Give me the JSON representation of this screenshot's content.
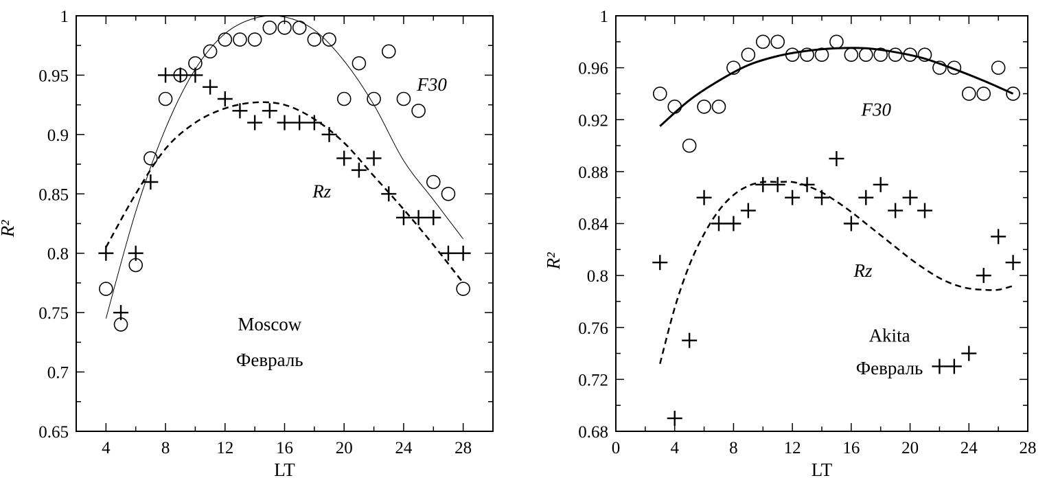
{
  "chart_data": [
    {
      "type": "scatter",
      "panel": "left",
      "xlabel": "LT",
      "ylabel": "R²",
      "xlim": [
        2,
        30
      ],
      "ylim": [
        0.65,
        1.0
      ],
      "xticks": [
        4,
        8,
        12,
        16,
        20,
        24,
        28
      ],
      "yticks": [
        0.65,
        0.7,
        0.75,
        0.8,
        0.85,
        0.9,
        0.95,
        1
      ],
      "ytick_labels": [
        "0.65",
        "0.7",
        "0.75",
        "0.8",
        "0.85",
        "0.9",
        "0.95",
        "1"
      ],
      "grid": false,
      "annotations": [
        {
          "text": "F30",
          "x": 25.9,
          "y": 0.937,
          "italic": true
        },
        {
          "text": "Rz",
          "x": 18.5,
          "y": 0.847,
          "italic": true
        },
        {
          "text": "Moscow",
          "x": 15.0,
          "y": 0.735,
          "italic": false
        },
        {
          "text": "Февраль",
          "x": 15.0,
          "y": 0.705,
          "italic": false
        }
      ],
      "series": [
        {
          "name": "F30",
          "marker": "circle",
          "points": [
            [
              4,
              0.77
            ],
            [
              5,
              0.74
            ],
            [
              6,
              0.79
            ],
            [
              7,
              0.88
            ],
            [
              8,
              0.93
            ],
            [
              9,
              0.95
            ],
            [
              10,
              0.96
            ],
            [
              11,
              0.97
            ],
            [
              12,
              0.98
            ],
            [
              13,
              0.98
            ],
            [
              14,
              0.98
            ],
            [
              15,
              0.99
            ],
            [
              16,
              0.99
            ],
            [
              17,
              0.99
            ],
            [
              18,
              0.98
            ],
            [
              19,
              0.98
            ],
            [
              20,
              0.93
            ],
            [
              21,
              0.96
            ],
            [
              22,
              0.93
            ],
            [
              23,
              0.97
            ],
            [
              24,
              0.93
            ],
            [
              25,
              0.92
            ],
            [
              26,
              0.86
            ],
            [
              27,
              0.85
            ],
            [
              28,
              0.77
            ]
          ],
          "fit": {
            "style": "solid-thin",
            "points": [
              [
                4,
                0.745
              ],
              [
                6,
                0.835
              ],
              [
                8,
                0.905
              ],
              [
                10,
                0.955
              ],
              [
                12,
                0.985
              ],
              [
                14,
                0.998
              ],
              [
                16,
                0.999
              ],
              [
                18,
                0.988
              ],
              [
                20,
                0.962
              ],
              [
                22,
                0.925
              ],
              [
                24,
                0.878
              ],
              [
                26,
                0.845
              ],
              [
                28,
                0.812
              ]
            ]
          }
        },
        {
          "name": "Rz",
          "marker": "plus",
          "points": [
            [
              4,
              0.8
            ],
            [
              5,
              0.75
            ],
            [
              6,
              0.8
            ],
            [
              7,
              0.86
            ],
            [
              8,
              0.95
            ],
            [
              9,
              0.95
            ],
            [
              10,
              0.95
            ],
            [
              11,
              0.94
            ],
            [
              12,
              0.93
            ],
            [
              13,
              0.92
            ],
            [
              14,
              0.91
            ],
            [
              15,
              0.92
            ],
            [
              16,
              0.91
            ],
            [
              17,
              0.91
            ],
            [
              18,
              0.91
            ],
            [
              19,
              0.9
            ],
            [
              20,
              0.88
            ],
            [
              21,
              0.87
            ],
            [
              22,
              0.88
            ],
            [
              23,
              0.85
            ],
            [
              24,
              0.83
            ],
            [
              25,
              0.83
            ],
            [
              26,
              0.83
            ],
            [
              27,
              0.8
            ],
            [
              28,
              0.8
            ]
          ],
          "fit": {
            "style": "dashed",
            "points": [
              [
                4,
                0.805
              ],
              [
                6,
                0.85
              ],
              [
                8,
                0.888
              ],
              [
                10,
                0.91
              ],
              [
                12,
                0.922
              ],
              [
                14,
                0.927
              ],
              [
                16,
                0.925
              ],
              [
                18,
                0.913
              ],
              [
                20,
                0.893
              ],
              [
                22,
                0.865
              ],
              [
                24,
                0.837
              ],
              [
                26,
                0.807
              ],
              [
                28,
                0.775
              ]
            ]
          }
        }
      ]
    },
    {
      "type": "scatter",
      "panel": "right",
      "xlabel": "LT",
      "ylabel": "R²",
      "xlim": [
        0,
        28
      ],
      "ylim": [
        0.68,
        1.0
      ],
      "xticks": [
        0,
        4,
        8,
        12,
        16,
        20,
        24,
        28
      ],
      "yticks": [
        0.68,
        0.72,
        0.76,
        0.8,
        0.84,
        0.88,
        0.92,
        0.96,
        1
      ],
      "ytick_labels": [
        "0.68",
        "0.72",
        "0.76",
        "0.8",
        "0.84",
        "0.88",
        "0.92",
        "0.96",
        "1"
      ],
      "grid": false,
      "annotations": [
        {
          "text": "F30",
          "x": 17.7,
          "y": 0.923,
          "italic": true
        },
        {
          "text": "Rz",
          "x": 16.8,
          "y": 0.799,
          "italic": true
        },
        {
          "text": "Akita",
          "x": 18.6,
          "y": 0.749,
          "italic": false
        },
        {
          "text": "Февраль",
          "x": 18.6,
          "y": 0.724,
          "italic": false
        }
      ],
      "series": [
        {
          "name": "F30",
          "marker": "circle",
          "points": [
            [
              3,
              0.94
            ],
            [
              4,
              0.93
            ],
            [
              5,
              0.9
            ],
            [
              6,
              0.93
            ],
            [
              7,
              0.93
            ],
            [
              8,
              0.96
            ],
            [
              9,
              0.97
            ],
            [
              10,
              0.98
            ],
            [
              11,
              0.98
            ],
            [
              12,
              0.97
            ],
            [
              13,
              0.97
            ],
            [
              14,
              0.97
            ],
            [
              15,
              0.98
            ],
            [
              16,
              0.97
            ],
            [
              17,
              0.97
            ],
            [
              18,
              0.97
            ],
            [
              19,
              0.97
            ],
            [
              20,
              0.97
            ],
            [
              21,
              0.97
            ],
            [
              22,
              0.96
            ],
            [
              23,
              0.96
            ],
            [
              24,
              0.94
            ],
            [
              25,
              0.94
            ],
            [
              26,
              0.96
            ],
            [
              27,
              0.94
            ]
          ],
          "fit": {
            "style": "solid-thick",
            "points": [
              [
                3,
                0.915
              ],
              [
                5,
                0.935
              ],
              [
                7,
                0.95
              ],
              [
                9,
                0.962
              ],
              [
                11,
                0.969
              ],
              [
                13,
                0.973
              ],
              [
                15,
                0.975
              ],
              [
                17,
                0.975
              ],
              [
                19,
                0.972
              ],
              [
                21,
                0.967
              ],
              [
                23,
                0.959
              ],
              [
                25,
                0.95
              ],
              [
                27,
                0.94
              ]
            ]
          }
        },
        {
          "name": "Rz",
          "marker": "plus",
          "points": [
            [
              3,
              0.81
            ],
            [
              4,
              0.69
            ],
            [
              5,
              0.75
            ],
            [
              6,
              0.86
            ],
            [
              7,
              0.84
            ],
            [
              8,
              0.84
            ],
            [
              9,
              0.85
            ],
            [
              10,
              0.87
            ],
            [
              11,
              0.87
            ],
            [
              12,
              0.86
            ],
            [
              13,
              0.87
            ],
            [
              14,
              0.86
            ],
            [
              15,
              0.89
            ],
            [
              16,
              0.84
            ],
            [
              17,
              0.86
            ],
            [
              18,
              0.87
            ],
            [
              19,
              0.85
            ],
            [
              20,
              0.86
            ],
            [
              21,
              0.85
            ],
            [
              22,
              0.73
            ],
            [
              23,
              0.73
            ],
            [
              24,
              0.74
            ],
            [
              25,
              0.8
            ],
            [
              26,
              0.83
            ],
            [
              27,
              0.81
            ]
          ],
          "fit": {
            "style": "dashed",
            "points": [
              [
                3,
                0.732
              ],
              [
                4,
                0.775
              ],
              [
                5,
                0.808
              ],
              [
                6,
                0.832
              ],
              [
                7,
                0.85
              ],
              [
                8,
                0.862
              ],
              [
                9,
                0.869
              ],
              [
                10,
                0.872
              ],
              [
                11,
                0.872
              ],
              [
                12,
                0.872
              ],
              [
                13,
                0.869
              ],
              [
                14,
                0.864
              ],
              [
                15,
                0.857
              ],
              [
                16,
                0.849
              ],
              [
                17,
                0.84
              ],
              [
                18,
                0.831
              ],
              [
                19,
                0.822
              ],
              [
                20,
                0.813
              ],
              [
                21,
                0.805
              ],
              [
                22,
                0.798
              ],
              [
                23,
                0.793
              ],
              [
                24,
                0.79
              ],
              [
                25,
                0.789
              ],
              [
                26,
                0.789
              ],
              [
                27,
                0.792
              ]
            ]
          }
        }
      ]
    }
  ]
}
